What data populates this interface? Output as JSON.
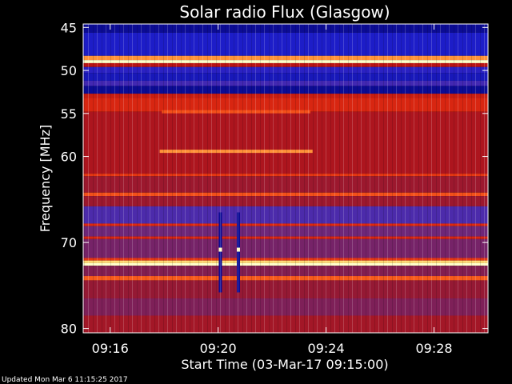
{
  "chart_data": {
    "type": "heatmap",
    "title": "Solar radio Flux (Glasgow)",
    "xlabel": "Start Time (03-Mar-17 09:15:00)",
    "ylabel": "Frequency [MHz]",
    "x_ticks": [
      "09:16",
      "09:20",
      "09:24",
      "09:28"
    ],
    "y_ticks": [
      45,
      50,
      55,
      60,
      70,
      80
    ],
    "ylim": [
      45,
      80
    ],
    "x_range": [
      "09:15:00",
      "09:30:00"
    ],
    "colormap": [
      "#00006e",
      "#1e1ecc",
      "#5a2fa0",
      "#8c1a3c",
      "#b81414",
      "#e02a10",
      "#ff6a20",
      "#ffd060",
      "#ffffc8"
    ],
    "bands": [
      {
        "from": 44.6,
        "to": 45.6,
        "intensity": 0.05
      },
      {
        "from": 45.6,
        "to": 48.3,
        "intensity": 0.12
      },
      {
        "from": 48.3,
        "to": 48.8,
        "intensity": 0.8
      },
      {
        "from": 48.8,
        "to": 49.15,
        "intensity": 1.0
      },
      {
        "from": 49.15,
        "to": 49.6,
        "intensity": 0.5
      },
      {
        "from": 49.6,
        "to": 50.3,
        "intensity": 0.15
      },
      {
        "from": 50.3,
        "to": 51.2,
        "intensity": 0.1
      },
      {
        "from": 51.2,
        "to": 51.8,
        "intensity": 0.2
      },
      {
        "from": 51.8,
        "to": 52.7,
        "intensity": 0.05
      },
      {
        "from": 52.7,
        "to": 53.2,
        "intensity": 0.55
      },
      {
        "from": 53.2,
        "to": 54.8,
        "intensity": 0.6
      },
      {
        "from": 54.8,
        "to": 62.0,
        "intensity": 0.47
      },
      {
        "from": 62.0,
        "to": 62.3,
        "intensity": 0.65
      },
      {
        "from": 62.3,
        "to": 64.2,
        "intensity": 0.42
      },
      {
        "from": 64.2,
        "to": 64.6,
        "intensity": 0.7
      },
      {
        "from": 64.6,
        "to": 65.8,
        "intensity": 0.42
      },
      {
        "from": 65.8,
        "to": 67.8,
        "intensity": 0.22
      },
      {
        "from": 67.8,
        "to": 68.1,
        "intensity": 0.62
      },
      {
        "from": 68.1,
        "to": 69.3,
        "intensity": 0.3
      },
      {
        "from": 69.3,
        "to": 69.6,
        "intensity": 0.6
      },
      {
        "from": 69.6,
        "to": 71.8,
        "intensity": 0.32
      },
      {
        "from": 71.8,
        "to": 72.1,
        "intensity": 0.65
      },
      {
        "from": 72.1,
        "to": 72.4,
        "intensity": 0.9
      },
      {
        "from": 72.4,
        "to": 72.7,
        "intensity": 1.0
      },
      {
        "from": 72.7,
        "to": 73.9,
        "intensity": 0.35
      },
      {
        "from": 73.9,
        "to": 74.4,
        "intensity": 0.72
      },
      {
        "from": 74.4,
        "to": 76.5,
        "intensity": 0.4
      },
      {
        "from": 76.5,
        "to": 78.5,
        "intensity": 0.34
      },
      {
        "from": 78.5,
        "to": 80.5,
        "intensity": 0.44
      }
    ],
    "features": [
      {
        "kind": "band-segment",
        "freq": 54.8,
        "x_start": "09:17:55",
        "x_end": "09:23:25",
        "intensity": 0.7
      },
      {
        "kind": "band-segment",
        "freq": 59.4,
        "x_start": "09:17:50",
        "x_end": "09:23:30",
        "intensity": 0.8
      },
      {
        "kind": "spike",
        "x": "09:20:05",
        "freq_from": 66.5,
        "freq_to": 75.8
      },
      {
        "kind": "spike",
        "x": "09:20:45",
        "freq_from": 66.5,
        "freq_to": 75.8
      }
    ]
  },
  "footer": {
    "updated": "Updated Mon Mar  6 11:15:25 2017"
  }
}
